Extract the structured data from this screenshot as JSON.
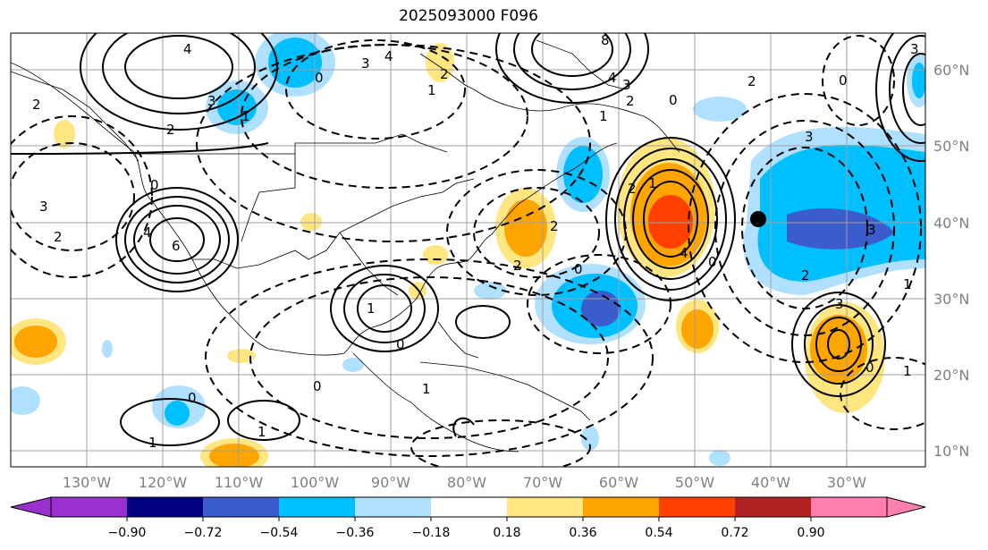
{
  "title": "2025093000 F096",
  "lon_labels": [
    "130°W",
    "120°W",
    "110°W",
    "100°W",
    "90°W",
    "80°W",
    "70°W",
    "60°W",
    "50°W",
    "40°W",
    "30°W"
  ],
  "lat_labels": [
    "60°N",
    "50°N",
    "40°N",
    "30°N",
    "20°N",
    "10°N"
  ],
  "colorbar": {
    "ticks": [
      "−0.90",
      "−0.72",
      "−0.54",
      "−0.36",
      "−0.18",
      "0.18",
      "0.36",
      "0.54",
      "0.72",
      "0.90"
    ],
    "colors": [
      "#9b30d0",
      "#000080",
      "#3a5ccc",
      "#00bfff",
      "#b0e0ff",
      "#ffffff",
      "#ffe680",
      "#ffa500",
      "#ff4000",
      "#b22222",
      "#ff80b0"
    ]
  },
  "contour_labels": [
    "4",
    "3",
    "2",
    "2",
    "1",
    "0",
    "3",
    "4",
    "2",
    "1",
    "8",
    "4",
    "3",
    "2",
    "1",
    "0",
    "2",
    "0",
    "3",
    "3",
    "2",
    "4",
    "6",
    "0",
    "2",
    "1",
    "2",
    "2",
    "0",
    "4",
    "3",
    "2",
    "1",
    "0",
    "3",
    "0",
    "1",
    "0",
    "1",
    "1",
    "0",
    "0",
    "1",
    "1",
    "3"
  ],
  "marker": "black-dot"
}
